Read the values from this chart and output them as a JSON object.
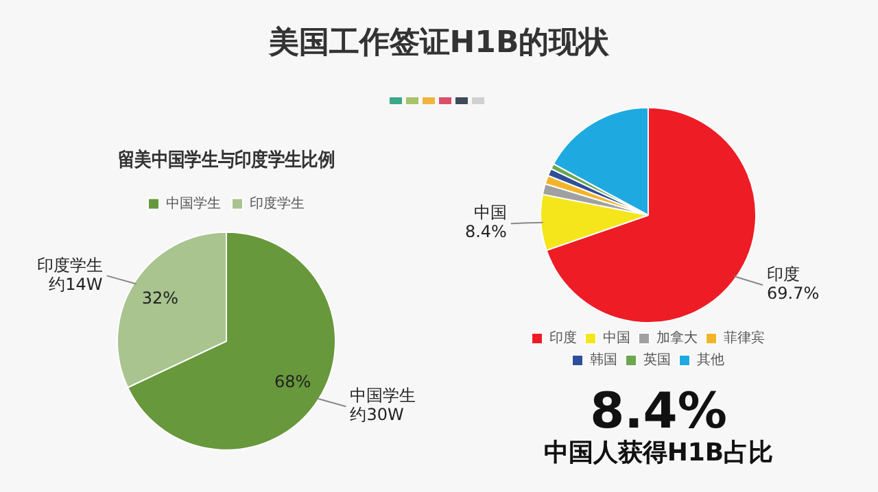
{
  "chart_data": [
    {
      "type": "other",
      "title": "美国工作签证H1B的现状"
    },
    {
      "type": "pie",
      "title": "留美中国学生与印度学生比例",
      "categories": [
        "中国学生",
        "印度学生"
      ],
      "values": [
        68,
        32
      ],
      "colors": [
        "#67983b",
        "#a9c48f"
      ],
      "value_labels": [
        "68%",
        "32%"
      ],
      "annotations": [
        "中国学生",
        "约30W",
        "印度学生",
        "约14W"
      ],
      "legend": "top"
    },
    {
      "type": "pie",
      "categories": [
        "印度",
        "中国",
        "加拿大",
        "菲律宾",
        "韩国",
        "英国",
        "其他"
      ],
      "values": [
        69.7,
        8.4,
        1.6,
        1.3,
        1.1,
        0.8,
        17.1
      ],
      "colors": [
        "#ee1c25",
        "#f5e61c",
        "#a0a0a0",
        "#f4b42a",
        "#2e4e9a",
        "#6aa84f",
        "#1fa9e1"
      ],
      "value_labels": [
        "69.7%",
        "8.4%",
        null,
        null,
        null,
        null,
        null
      ],
      "legend": "bottom"
    },
    {
      "type": "other",
      "annotations": [
        "8.4%",
        "中国人获得H1B占比"
      ]
    }
  ]
}
